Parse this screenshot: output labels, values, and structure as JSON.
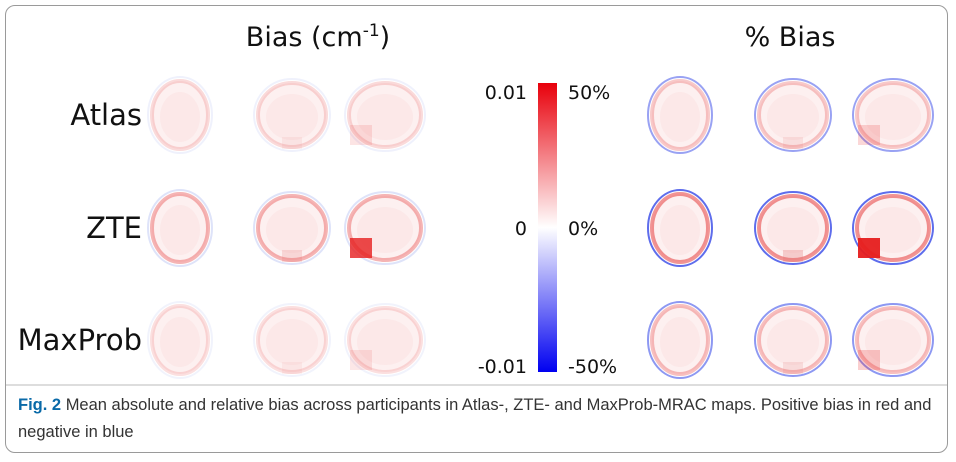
{
  "figure": {
    "left_title": {
      "text": "Bias (cm",
      "superscript": "-1",
      "after": ")"
    },
    "right_title": "% Bias",
    "rows": [
      "Atlas",
      "ZTE",
      "MaxProb"
    ],
    "colorbar": {
      "left_labels": [
        "0.01",
        "0",
        "-0.01"
      ],
      "right_labels": [
        "50%",
        "0%",
        "-50%"
      ]
    },
    "caption": {
      "label": "Fig. 2",
      "text": "Mean absolute and relative bias across participants in Atlas-, ZTE- and MaxProb-MRAC maps. Positive bias in red and negative in blue"
    }
  }
}
